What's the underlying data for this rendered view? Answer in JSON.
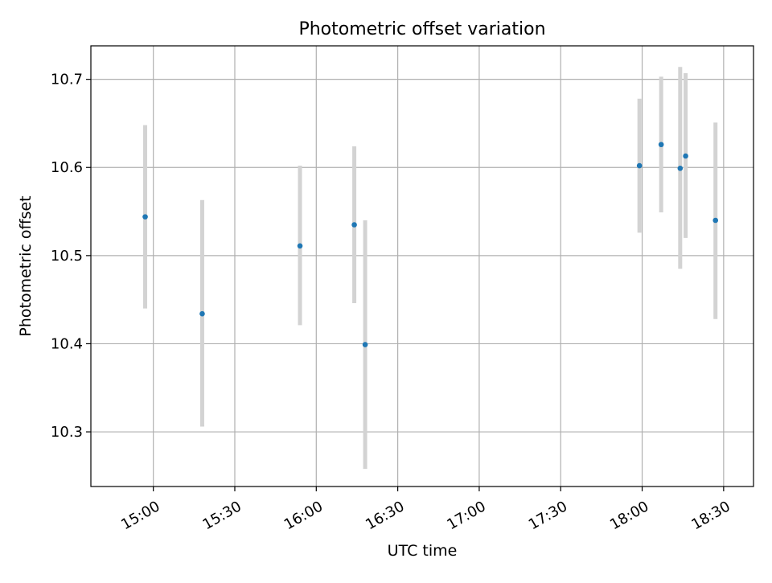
{
  "chart_data": {
    "type": "scatter",
    "title": "Photometric offset variation",
    "xlabel": "UTC time",
    "ylabel": "Photometric offset",
    "x_axis_type": "time",
    "xlim": [
      "14:37",
      "18:41"
    ],
    "ylim": [
      10.238,
      10.738
    ],
    "x_ticks": [
      "15:00",
      "15:30",
      "16:00",
      "16:30",
      "17:00",
      "17:30",
      "18:00",
      "18:30"
    ],
    "y_ticks": [
      "10.3",
      "10.4",
      "10.5",
      "10.6",
      "10.7"
    ],
    "grid": true,
    "legend": "none",
    "marker_color": "#1f77b4",
    "errorbar_color": "#d3d3d3",
    "series": [
      {
        "points": [
          {
            "x": "14:57",
            "y": 10.544,
            "ylow": 10.44,
            "yhigh": 10.648
          },
          {
            "x": "15:18",
            "y": 10.434,
            "ylow": 10.306,
            "yhigh": 10.563
          },
          {
            "x": "15:54",
            "y": 10.511,
            "ylow": 10.421,
            "yhigh": 10.602
          },
          {
            "x": "16:14",
            "y": 10.535,
            "ylow": 10.446,
            "yhigh": 10.624
          },
          {
            "x": "16:18",
            "y": 10.399,
            "ylow": 10.258,
            "yhigh": 10.54
          },
          {
            "x": "17:59",
            "y": 10.602,
            "ylow": 10.526,
            "yhigh": 10.678
          },
          {
            "x": "18:07",
            "y": 10.626,
            "ylow": 10.549,
            "yhigh": 10.703
          },
          {
            "x": "18:14",
            "y": 10.599,
            "ylow": 10.485,
            "yhigh": 10.714
          },
          {
            "x": "18:16",
            "y": 10.613,
            "ylow": 10.52,
            "yhigh": 10.707
          },
          {
            "x": "18:27",
            "y": 10.54,
            "ylow": 10.428,
            "yhigh": 10.651
          }
        ]
      }
    ]
  }
}
